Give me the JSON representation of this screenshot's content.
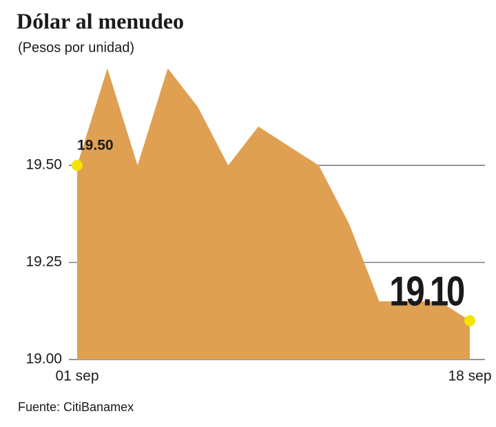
{
  "chart_data": {
    "type": "area",
    "title": "Dólar al menudeo",
    "subtitle": "(Pesos por unidad)",
    "source": "Fuente: CitiBanamex",
    "categories": [
      "01 sep",
      null,
      null,
      null,
      null,
      null,
      null,
      null,
      null,
      null,
      null,
      null,
      null,
      "18 sep"
    ],
    "values": [
      19.5,
      19.75,
      19.5,
      19.75,
      19.65,
      19.5,
      19.6,
      19.55,
      19.5,
      19.35,
      19.15,
      19.15,
      19.15,
      19.1
    ],
    "value_labels": [
      "19.50",
      null,
      null,
      null,
      null,
      null,
      null,
      null,
      null,
      null,
      null,
      null,
      null,
      "19.10"
    ],
    "color": "#dfa052",
    "marker_color": "#f2e600",
    "ylim": [
      19.0,
      19.8
    ],
    "yticks": [
      {
        "value": 19.0,
        "label": "19.00"
      },
      {
        "value": 19.25,
        "label": "19.25"
      },
      {
        "value": 19.5,
        "label": "19.50"
      }
    ],
    "grid": true
  }
}
